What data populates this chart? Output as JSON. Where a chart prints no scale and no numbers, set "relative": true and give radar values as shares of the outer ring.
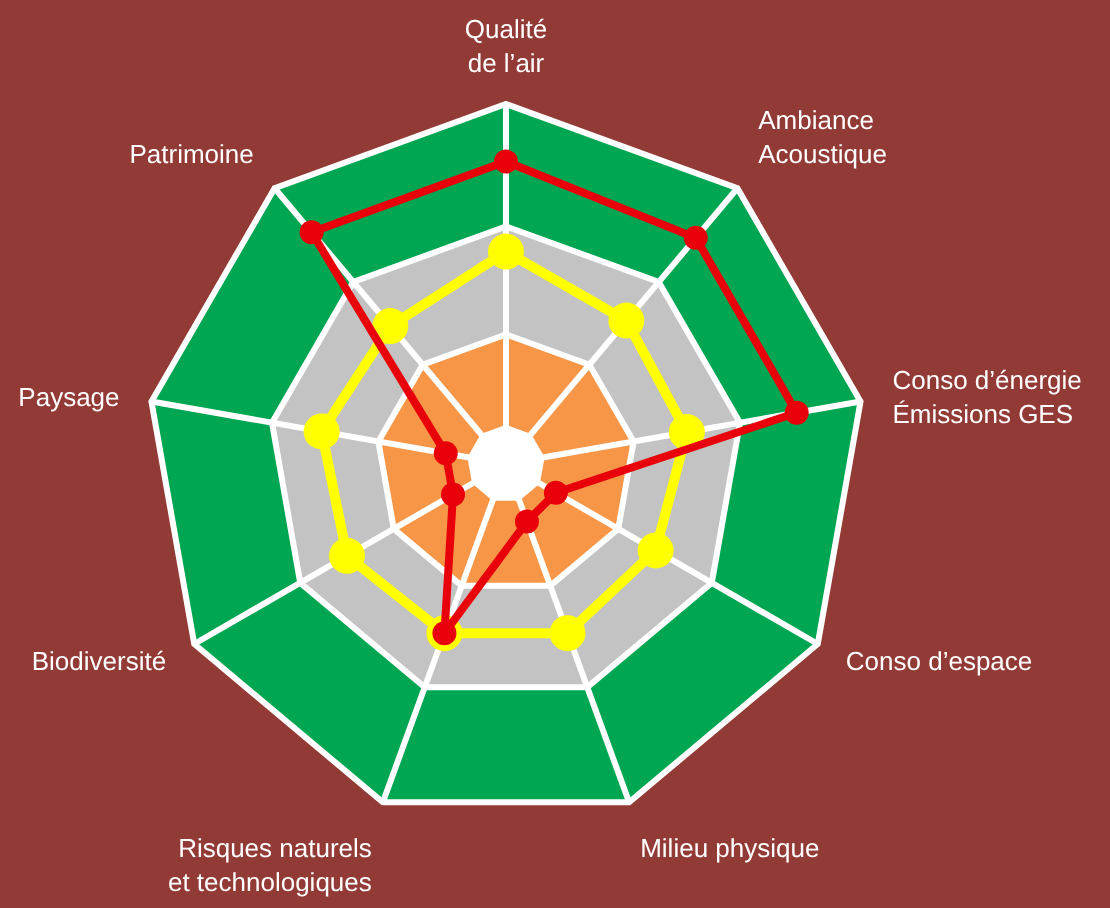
{
  "chart_data": {
    "type": "radar",
    "relative": true,
    "marker": "circle",
    "grid": true,
    "categories": [
      "Qualité\nde l’air",
      "Ambiance\nAcoustique",
      "Conso d’énergie\nÉmissions GES",
      "Conso d’espace",
      "Milieu physique",
      "Risques naturels\net technologiques",
      "Biodiversité",
      "Paysage",
      "Patrimoine"
    ],
    "series": [
      {
        "color": "#ffff00",
        "values": [
          0.59,
          0.52,
          0.51,
          0.48,
          0.5,
          0.5,
          0.51,
          0.52,
          0.5
        ]
      },
      {
        "color": "#e8000b",
        "values": [
          0.84,
          0.82,
          0.82,
          0.16,
          0.17,
          0.5,
          0.17,
          0.17,
          0.84
        ]
      }
    ]
  }
}
